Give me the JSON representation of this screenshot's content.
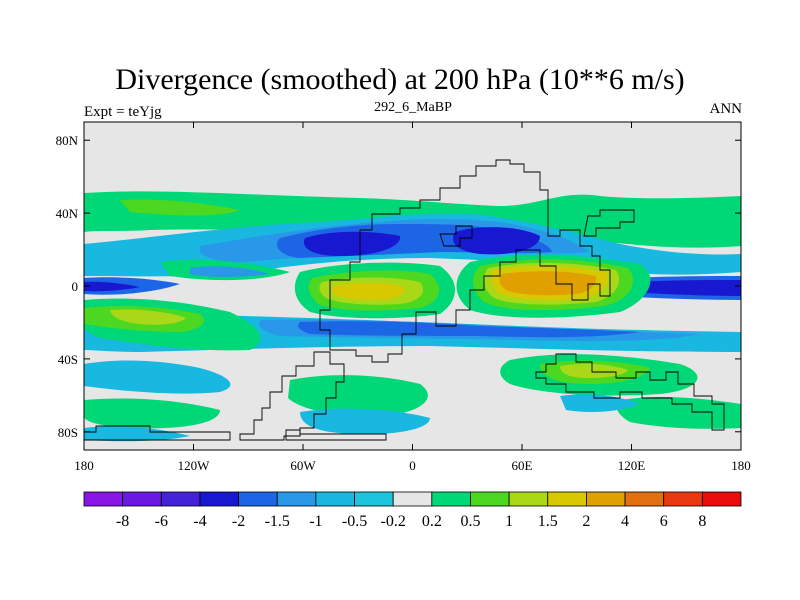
{
  "title": "Divergence (smoothed) at 200 hPa (10**6 m/s)",
  "left_label": "Expt = teYjg",
  "center_label": "292_6_MaBP",
  "right_label": "ANN",
  "colors": {
    "background": "#e6e6e6",
    "strong_neg": "#1818d0",
    "mid_neg": "#1c66e6",
    "weak_neg": "#2a98e8",
    "faint_neg": "#18b8e0",
    "faint_pos": "#00d878",
    "weak_pos": "#4cd820",
    "mid_pos": "#a8d818",
    "strong_pos": "#d8c800",
    "peak_pos": "#e0a000"
  },
  "chart_data": {
    "type": "heatmap",
    "lon_range": [
      -180,
      180
    ],
    "lat_range": [
      -90,
      90
    ],
    "x_ticks": [
      "180",
      "120W",
      "60W",
      "0",
      "60E",
      "120E",
      "180"
    ],
    "y_ticks": [
      "80N",
      "40N",
      "0",
      "40S",
      "80S"
    ],
    "colorbar": {
      "labels": [
        "-8",
        "-6",
        "-4",
        "-2",
        "-1.5",
        "-1",
        "-0.5",
        "-0.2",
        "0.2",
        "0.5",
        "1",
        "1.5",
        "2",
        "4",
        "6",
        "8"
      ],
      "colors": [
        "#8a16e6",
        "#6a1ae0",
        "#4422d8",
        "#1818d0",
        "#1c66e6",
        "#2a98e8",
        "#18b8e0",
        "#1cc4dc",
        "#e6e6e6",
        "#00d878",
        "#4cd820",
        "#a8d818",
        "#d8c800",
        "#e0a000",
        "#e07010",
        "#e83810",
        "#e80c0c"
      ]
    }
  }
}
